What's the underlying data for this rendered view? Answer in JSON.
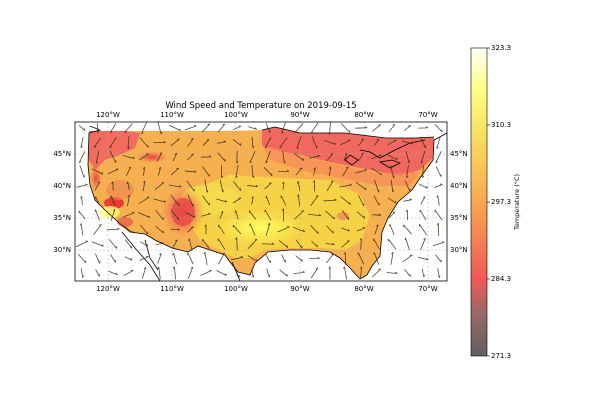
{
  "chart_data": {
    "type": "map",
    "title": "Wind Speed and Temperature on 2019-09-15",
    "colorbar": {
      "label": "Temperature (°C)",
      "ticks": [
        "323.3",
        "310.3",
        "297.3",
        "284.3",
        "271.3"
      ],
      "range": [
        271.3,
        323.3
      ]
    },
    "axes": {
      "lon_ticks": [
        "120°W",
        "110°W",
        "100°W",
        "90°W",
        "80°W",
        "70°W"
      ],
      "lat_ticks": [
        "45°N",
        "40°N",
        "35°N",
        "30°N"
      ],
      "lon_range": [
        -125,
        -67
      ],
      "lat_range": [
        25,
        50
      ]
    },
    "grid": true,
    "colors": {
      "hot": "#f06060",
      "warm": "#f7a850",
      "mild": "#f2d040",
      "cool": "#ffff70"
    },
    "hot_spots": [
      {
        "lon": -118,
        "lat": 37.5
      },
      {
        "lon": -117,
        "lat": 34.5
      },
      {
        "lon": -107.5,
        "lat": 37
      },
      {
        "lon": -113,
        "lat": 44.5
      },
      {
        "lon": -123,
        "lat": 40
      },
      {
        "lon": -82,
        "lat": 35
      }
    ]
  }
}
